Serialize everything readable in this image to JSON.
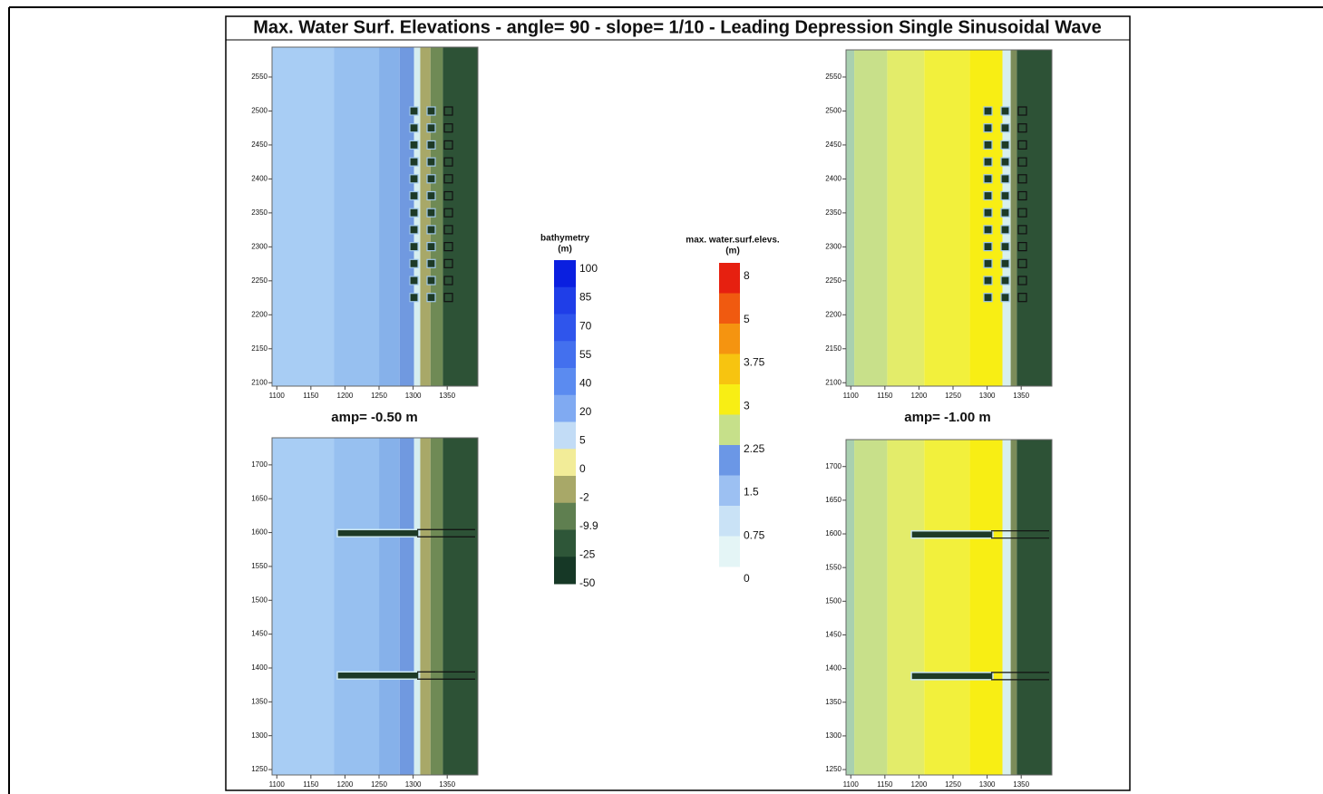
{
  "title": "Max. Water Surf. Elevations  -  angle= 90 - slope= 1/10 - Leading Depression Single Sinusoidal Wave",
  "panels": [
    {
      "xlim": [
        1093,
        1395
      ],
      "ylim": [
        2095,
        2594
      ],
      "xticks": [
        1100,
        1150,
        1200,
        1250,
        1300,
        1350
      ],
      "yticks": [
        2100,
        2150,
        2200,
        2250,
        2300,
        2350,
        2400,
        2450,
        2500,
        2550
      ]
    },
    {
      "xlim": [
        1093,
        1395
      ],
      "ylim": [
        2095,
        2590
      ],
      "xticks": [
        1100,
        1150,
        1200,
        1250,
        1300,
        1350
      ],
      "yticks": [
        2100,
        2150,
        2200,
        2250,
        2300,
        2350,
        2400,
        2450,
        2500,
        2550
      ]
    },
    {
      "xlim": [
        1093,
        1395
      ],
      "ylim": [
        1242,
        1740
      ],
      "xticks": [
        1100,
        1150,
        1200,
        1250,
        1300,
        1350
      ],
      "yticks": [
        1250,
        1300,
        1350,
        1400,
        1450,
        1500,
        1550,
        1600,
        1650,
        1700
      ]
    },
    {
      "xlim": [
        1093,
        1395
      ],
      "ylim": [
        1242,
        1740
      ],
      "xticks": [
        1100,
        1150,
        1200,
        1250,
        1300,
        1350
      ],
      "yticks": [
        1250,
        1300,
        1350,
        1400,
        1450,
        1500,
        1550,
        1600,
        1650,
        1700
      ]
    }
  ],
  "captions": [
    "amp= -0.50 m",
    "amp= -1.00 m"
  ],
  "colorbars": [
    {
      "title": "bathymetry",
      "unit": "(m)",
      "levels": [
        100,
        85,
        70,
        55,
        40,
        20,
        5,
        0,
        -2,
        -9.9,
        -25,
        -50
      ]
    },
    {
      "title": "max. water.surf.elevs.",
      "unit": "(m)",
      "levels": [
        8,
        5,
        3.75,
        3,
        2.25,
        1.5,
        0.75,
        0
      ]
    }
  ]
}
